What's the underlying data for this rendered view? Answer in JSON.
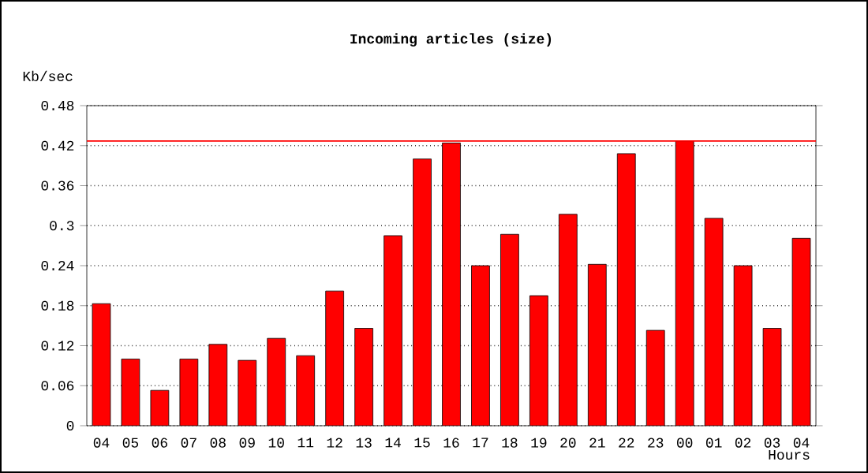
{
  "chart_data": {
    "type": "bar",
    "title": "Incoming articles (size)",
    "xlabel": "Hours",
    "ylabel": "Kb/sec",
    "categories": [
      "04",
      "05",
      "06",
      "07",
      "08",
      "09",
      "10",
      "11",
      "12",
      "13",
      "14",
      "15",
      "16",
      "17",
      "18",
      "19",
      "20",
      "21",
      "22",
      "23",
      "00",
      "01",
      "02",
      "03",
      "04"
    ],
    "values": [
      0.183,
      0.1,
      0.053,
      0.1,
      0.122,
      0.098,
      0.131,
      0.105,
      0.202,
      0.146,
      0.285,
      0.4,
      0.424,
      0.24,
      0.287,
      0.195,
      0.317,
      0.242,
      0.408,
      0.143,
      0.427,
      0.311,
      0.24,
      0.146,
      0.281
    ],
    "color": "#ff0000",
    "ylim": [
      0,
      0.48
    ],
    "yticks": [
      0,
      0.06,
      0.12,
      0.18,
      0.24,
      0.3,
      0.36,
      0.42,
      0.48
    ],
    "grid": "y",
    "ref_lines": [
      {
        "axis": "y",
        "value": 0.427,
        "color": "#ff0000"
      }
    ]
  }
}
